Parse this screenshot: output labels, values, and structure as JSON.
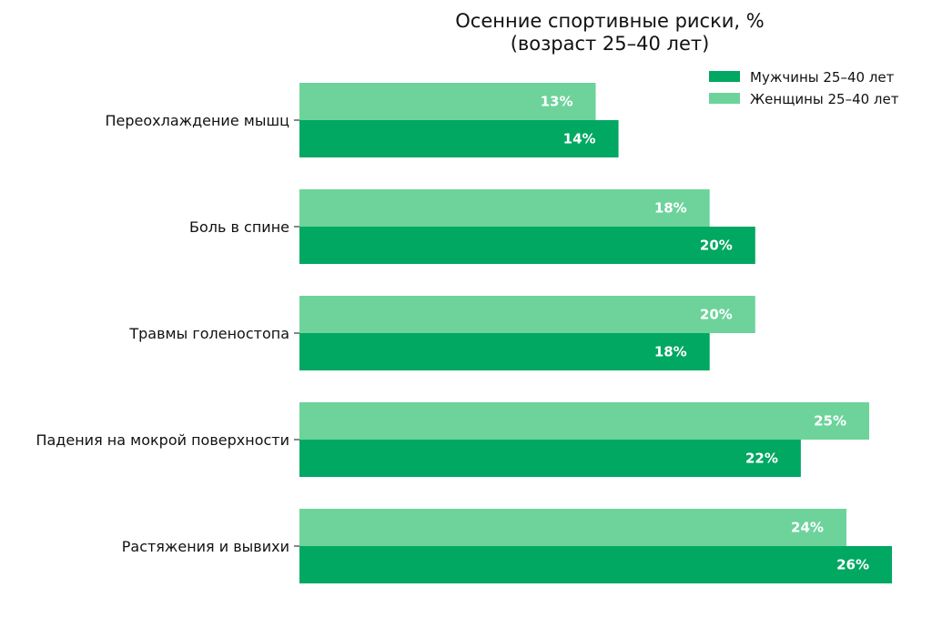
{
  "chart_data": {
    "type": "bar",
    "orientation": "horizontal",
    "title": "Осенние спортивные риски, %",
    "subtitle": "(возраст 25–40 лет)",
    "categories": [
      "Переохлаждение мышц",
      "Боль в спине",
      "Травмы голеностопа",
      "Падения на мокрой поверхности",
      "Растяжения и вывихи"
    ],
    "series": [
      {
        "name": "Мужчины 25–40 лет",
        "color": "#00a862",
        "values": [
          14,
          20,
          18,
          22,
          26
        ],
        "labels": [
          "14%",
          "20%",
          "18%",
          "22%",
          "26%"
        ]
      },
      {
        "name": "Женщины 25–40 лет",
        "color": "#6dd39b",
        "values": [
          13,
          18,
          20,
          25,
          24
        ],
        "labels": [
          "13%",
          "18%",
          "20%",
          "25%",
          "24%"
        ]
      }
    ],
    "xlim": [
      0,
      26
    ],
    "grid": false,
    "legend_position": "top-right"
  }
}
